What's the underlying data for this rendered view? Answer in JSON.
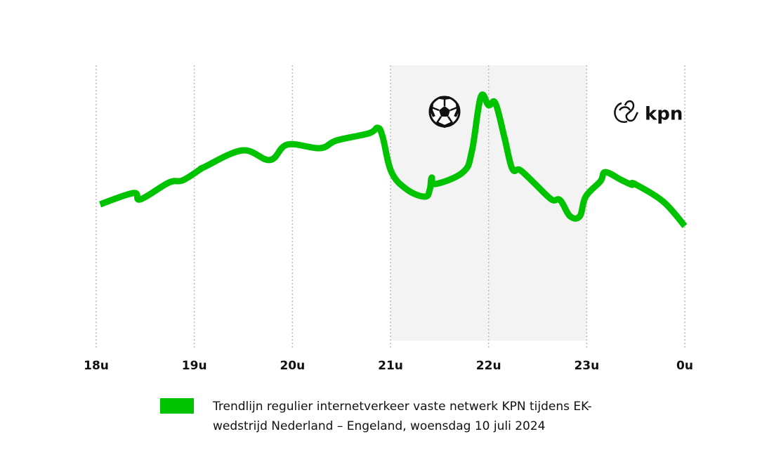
{
  "chart_data": {
    "type": "line",
    "x": [
      18.04,
      18.38,
      18.45,
      18.74,
      18.88,
      19.06,
      19.1,
      19.49,
      19.77,
      19.95,
      20.28,
      20.45,
      20.78,
      20.87,
      20.92,
      21.01,
      21.17,
      21.35,
      21.4,
      21.42,
      21.46,
      21.74,
      21.83,
      21.92,
      22.0,
      22.07,
      22.16,
      22.24,
      22.32,
      22.46,
      22.64,
      22.73,
      22.83,
      22.93,
      22.99,
      23.14,
      23.19,
      23.35,
      23.46,
      23.49,
      23.78,
      24.0
    ],
    "series": [
      {
        "name": "Trendlijn regulier internetverkeer vaste netwerk KPN tijdens EK-wedstrijd Nederland – Engeland, woensdag 10 juli 2024",
        "color": "#00c300",
        "values": [
          49.5,
          53.6,
          51.3,
          57.4,
          58.2,
          62.2,
          63.0,
          69.1,
          65.6,
          71.2,
          69.9,
          72.7,
          75.3,
          77.3,
          74.0,
          61.2,
          54.8,
          52.3,
          54.8,
          59.2,
          56.9,
          61.2,
          68.9,
          88.5,
          85.5,
          86.2,
          74.0,
          62.5,
          62.0,
          57.4,
          51.3,
          51.0,
          45.2,
          45.2,
          52.3,
          57.9,
          61.2,
          58.4,
          56.6,
          56.9,
          50.5,
          41.6
        ]
      }
    ],
    "xlim": [
      18,
      24
    ],
    "xticks": [
      {
        "value": 18,
        "label": "18u"
      },
      {
        "value": 19,
        "label": "19u"
      },
      {
        "value": 20,
        "label": "20u"
      },
      {
        "value": 21,
        "label": "21u"
      },
      {
        "value": 22,
        "label": "22u"
      },
      {
        "value": 23,
        "label": "23u"
      },
      {
        "value": 24,
        "label": "0u"
      }
    ],
    "ylim": [
      0,
      100
    ],
    "grid": true,
    "highlight": [
      21,
      23
    ],
    "highlight_color": "#f3f3f3",
    "logo": "kpn"
  }
}
